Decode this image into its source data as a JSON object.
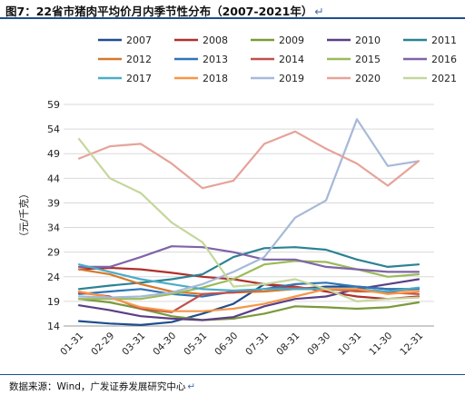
{
  "figure": {
    "title": "图7：22省市猪肉平均价月内季节性分布（2007-2021年）",
    "source": "数据来源：Wind，广发证券发展研究中心",
    "paragraph_mark": "↵"
  },
  "chart_data": {
    "type": "line",
    "ylabel": "（元/千克）",
    "xlabel": "",
    "ylim": [
      14,
      59
    ],
    "yticks": [
      14,
      19,
      24,
      29,
      34,
      39,
      44,
      49,
      54,
      59
    ],
    "categories": [
      "01-31",
      "02-29",
      "03-31",
      "04-30",
      "05-31",
      "06-30",
      "07-31",
      "08-31",
      "09-30",
      "10-31",
      "11-30",
      "12-31"
    ],
    "grid": "horizontal",
    "legend_position": "top",
    "series": [
      {
        "name": "2007",
        "color": "#1f4e8c",
        "values": [
          15.0,
          14.5,
          14.2,
          14.8,
          16.5,
          18.5,
          22.5,
          21.5,
          22.0,
          22.0,
          21.5,
          21.5
        ]
      },
      {
        "name": "2008",
        "color": "#b02f2c",
        "values": [
          25.5,
          25.8,
          25.5,
          24.8,
          24.0,
          23.5,
          22.5,
          22.0,
          21.0,
          20.0,
          19.5,
          20.0
        ]
      },
      {
        "name": "2009",
        "color": "#7a9a3a",
        "values": [
          19.5,
          18.8,
          17.5,
          16.0,
          15.2,
          15.5,
          16.5,
          18.0,
          17.8,
          17.5,
          17.8,
          18.8
        ]
      },
      {
        "name": "2010",
        "color": "#5b3f86",
        "values": [
          18.2,
          17.2,
          16.0,
          15.5,
          15.2,
          15.8,
          18.0,
          19.5,
          20.0,
          21.5,
          22.5,
          23.5
        ]
      },
      {
        "name": "2011",
        "color": "#2b8294",
        "values": [
          21.5,
          22.2,
          22.8,
          23.5,
          24.5,
          28.0,
          29.8,
          30.0,
          29.5,
          27.5,
          26.0,
          26.5
        ]
      },
      {
        "name": "2012",
        "color": "#d6782c",
        "values": [
          25.5,
          24.5,
          22.5,
          21.0,
          20.5,
          20.8,
          21.0,
          21.5,
          21.5,
          21.0,
          21.0,
          21.5
        ]
      },
      {
        "name": "2013",
        "color": "#2f75b5",
        "values": [
          20.5,
          21.0,
          21.5,
          20.5,
          20.0,
          21.0,
          21.5,
          22.5,
          22.8,
          22.0,
          21.5,
          21.5
        ]
      },
      {
        "name": "2014",
        "color": "#c0504d",
        "values": [
          20.8,
          20.0,
          17.5,
          16.8,
          20.5,
          20.8,
          21.5,
          21.8,
          21.5,
          21.2,
          20.8,
          20.5
        ]
      },
      {
        "name": "2015",
        "color": "#9bbb59",
        "values": [
          19.5,
          19.5,
          19.5,
          20.5,
          21.8,
          23.5,
          26.5,
          27.2,
          27.0,
          25.5,
          24.0,
          24.5
        ]
      },
      {
        "name": "2016",
        "color": "#7f63a8",
        "values": [
          26.0,
          26.0,
          28.0,
          30.2,
          30.0,
          29.0,
          27.5,
          27.5,
          26.0,
          25.5,
          25.0,
          25.0
        ]
      },
      {
        "name": "2017",
        "color": "#4bacc6",
        "values": [
          26.5,
          25.0,
          23.5,
          22.5,
          21.5,
          21.2,
          21.5,
          21.5,
          21.5,
          21.5,
          21.0,
          21.8
        ]
      },
      {
        "name": "2018",
        "color": "#f79646",
        "values": [
          21.0,
          19.8,
          17.8,
          17.0,
          17.0,
          17.5,
          18.5,
          20.0,
          21.5,
          21.5,
          20.5,
          21.0
        ]
      },
      {
        "name": "2019",
        "color": "#a6b9d8",
        "values": [
          20.0,
          19.8,
          20.0,
          20.8,
          22.5,
          25.0,
          28.0,
          36.0,
          39.5,
          56.0,
          46.5,
          47.5
        ]
      },
      {
        "name": "2020",
        "color": "#e6a39a",
        "values": [
          48.0,
          50.5,
          51.0,
          47.0,
          42.0,
          43.5,
          51.0,
          53.5,
          50.0,
          47.0,
          42.5,
          47.5
        ]
      },
      {
        "name": "2021",
        "color": "#c4d79b",
        "values": [
          52.0,
          44.0,
          41.0,
          35.0,
          31.0,
          22.0,
          22.5,
          23.5,
          21.5,
          19.0,
          19.5,
          19.8
        ]
      }
    ]
  }
}
